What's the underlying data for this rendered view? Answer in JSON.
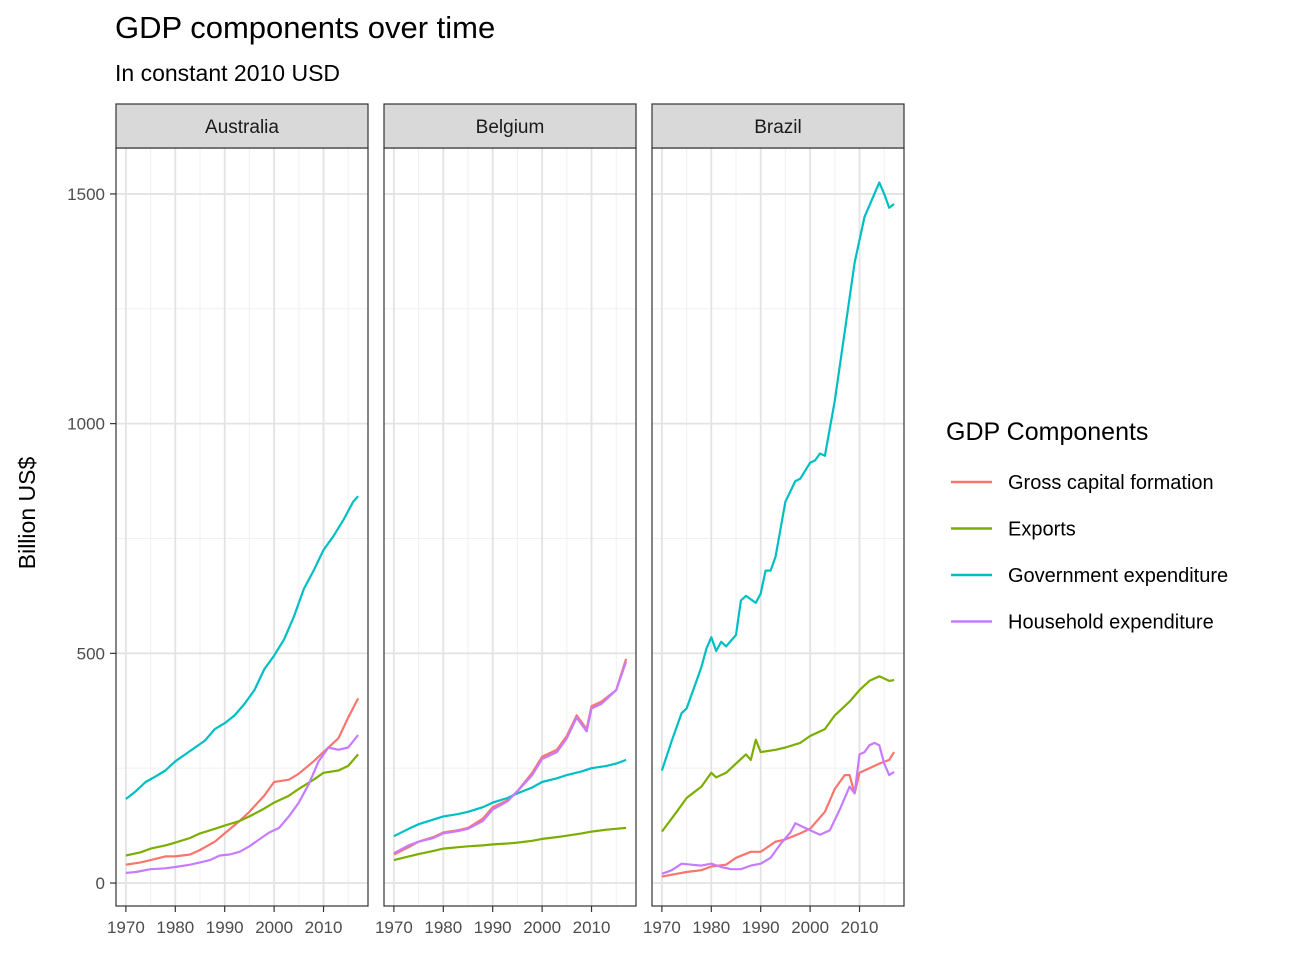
{
  "title": "GDP components over time",
  "subtitle": "In constant 2010 USD",
  "legend": {
    "title": "GDP Components",
    "placement": "right"
  },
  "chart_data": {
    "type": "line",
    "ylabel": "Billion US$",
    "xlabel": "",
    "ylim": [
      -50,
      1600
    ],
    "xlim": [
      1968,
      2019
    ],
    "y_ticks": [
      0,
      500,
      1000,
      1500
    ],
    "x_ticks": [
      1970,
      1980,
      1990,
      2000,
      2010
    ],
    "grid": true,
    "facets": [
      "Australia",
      "Belgium",
      "Brazil"
    ],
    "series_order": [
      "Gross capital formation",
      "Exports",
      "Government expenditure",
      "Household expenditure"
    ],
    "colors": {
      "Gross capital formation": "#F8766D",
      "Exports": "#7CAE00",
      "Government expenditure": "#00BFC4",
      "Household expenditure": "#C77CFF"
    },
    "panels": [
      {
        "name": "Australia",
        "series": [
          {
            "name": "Gross capital formation",
            "x": [
              1970,
              1973,
              1975,
              1978,
              1980,
              1983,
              1985,
              1988,
              1990,
              1993,
              1995,
              1998,
              2000,
              2003,
              2005,
              2008,
              2010,
              2013,
              2015,
              2017
            ],
            "values": [
              40,
              45,
              50,
              58,
              58,
              62,
              72,
              90,
              108,
              135,
              155,
              190,
              220,
              225,
              238,
              265,
              285,
              315,
              360,
              402
            ]
          },
          {
            "name": "Exports",
            "x": [
              1970,
              1973,
              1975,
              1978,
              1980,
              1983,
              1985,
              1988,
              1990,
              1993,
              1995,
              1998,
              2000,
              2003,
              2005,
              2008,
              2010,
              2013,
              2015,
              2017
            ],
            "values": [
              60,
              67,
              75,
              82,
              88,
              98,
              108,
              118,
              125,
              135,
              145,
              162,
              175,
              190,
              205,
              225,
              240,
              245,
              255,
              280
            ]
          },
          {
            "name": "Government expenditure",
            "x": [
              1970,
              1972,
              1974,
              1976,
              1978,
              1980,
              1982,
              1984,
              1986,
              1988,
              1990,
              1992,
              1994,
              1996,
              1998,
              2000,
              2002,
              2004,
              2006,
              2008,
              2010,
              2012,
              2014,
              2016,
              2017
            ],
            "values": [
              183,
              200,
              220,
              232,
              245,
              265,
              280,
              295,
              310,
              335,
              348,
              365,
              390,
              420,
              465,
              495,
              530,
              580,
              640,
              680,
              725,
              755,
              790,
              830,
              842
            ]
          },
          {
            "name": "Household expenditure",
            "x": [
              1970,
              1972,
              1975,
              1978,
              1980,
              1983,
              1985,
              1987,
              1989,
              1991,
              1993,
              1995,
              1997,
              1999,
              2001,
              2003,
              2005,
              2007,
              2009,
              2011,
              2013,
              2015,
              2017
            ],
            "values": [
              22,
              24,
              30,
              32,
              35,
              40,
              45,
              50,
              60,
              62,
              68,
              80,
              95,
              110,
              120,
              145,
              175,
              215,
              265,
              295,
              290,
              295,
              322
            ]
          }
        ]
      },
      {
        "name": "Belgium",
        "series": [
          {
            "name": "Gross capital formation",
            "x": [
              1970,
              1973,
              1975,
              1978,
              1980,
              1983,
              1985,
              1988,
              1990,
              1993,
              1995,
              1998,
              2000,
              2003,
              2005,
              2007,
              2009,
              2010,
              2012,
              2015,
              2017
            ],
            "values": [
              62,
              78,
              90,
              100,
              110,
              115,
              120,
              140,
              165,
              180,
              200,
              240,
              275,
              290,
              320,
              365,
              335,
              385,
              395,
              420,
              488
            ]
          },
          {
            "name": "Exports",
            "x": [
              1970,
              1973,
              1975,
              1978,
              1980,
              1983,
              1985,
              1988,
              1990,
              1993,
              1995,
              1998,
              2000,
              2003,
              2005,
              2008,
              2010,
              2013,
              2015,
              2017
            ],
            "values": [
              50,
              58,
              63,
              70,
              75,
              78,
              80,
              82,
              84,
              86,
              88,
              92,
              96,
              100,
              103,
              108,
              112,
              116,
              118,
              120
            ]
          },
          {
            "name": "Government expenditure",
            "x": [
              1970,
              1973,
              1975,
              1978,
              1980,
              1983,
              1985,
              1988,
              1990,
              1993,
              1995,
              1998,
              2000,
              2003,
              2005,
              2008,
              2010,
              2013,
              2015,
              2017
            ],
            "values": [
              102,
              118,
              128,
              138,
              145,
              150,
              155,
              165,
              175,
              185,
              195,
              208,
              220,
              228,
              235,
              243,
              250,
              255,
              260,
              268
            ]
          },
          {
            "name": "Household expenditure",
            "x": [
              1970,
              1973,
              1975,
              1978,
              1980,
              1983,
              1985,
              1988,
              1990,
              1993,
              1995,
              1998,
              2000,
              2003,
              2005,
              2007,
              2009,
              2010,
              2012,
              2015,
              2017
            ],
            "values": [
              65,
              82,
              90,
              98,
              108,
              113,
              118,
              135,
              160,
              178,
              200,
              235,
              270,
              285,
              315,
              360,
              330,
              380,
              390,
              420,
              482
            ]
          }
        ]
      },
      {
        "name": "Brazil",
        "series": [
          {
            "name": "Gross capital formation",
            "x": [
              1970,
              1973,
              1975,
              1978,
              1980,
              1983,
              1985,
              1988,
              1990,
              1993,
              1995,
              1998,
              2000,
              2003,
              2005,
              2007,
              2008,
              2009,
              2010,
              2012,
              2014,
              2016,
              2017
            ],
            "values": [
              14,
              20,
              24,
              28,
              36,
              40,
              55,
              68,
              68,
              90,
              95,
              108,
              118,
              155,
              205,
              235,
              235,
              195,
              240,
              250,
              260,
              268,
              285
            ]
          },
          {
            "name": "Exports",
            "x": [
              1970,
              1973,
              1975,
              1978,
              1980,
              1981,
              1983,
              1985,
              1987,
              1988,
              1989,
              1990,
              1993,
              1995,
              1998,
              2000,
              2003,
              2005,
              2008,
              2010,
              2012,
              2014,
              2016,
              2017
            ],
            "values": [
              112,
              155,
              185,
              210,
              240,
              230,
              240,
              260,
              280,
              268,
              312,
              285,
              290,
              295,
              305,
              320,
              335,
              365,
              395,
              420,
              440,
              450,
              440,
              442
            ]
          },
          {
            "name": "Government expenditure",
            "x": [
              1970,
              1972,
              1974,
              1975,
              1977,
              1978,
              1979,
              1980,
              1981,
              1982,
              1983,
              1985,
              1986,
              1987,
              1989,
              1990,
              1991,
              1992,
              1993,
              1995,
              1997,
              1998,
              2000,
              2001,
              2002,
              2003,
              2005,
              2007,
              2009,
              2011,
              2013,
              2014,
              2015,
              2016,
              2017
            ],
            "values": [
              245,
              310,
              370,
              380,
              440,
              470,
              510,
              535,
              505,
              525,
              515,
              540,
              615,
              625,
              610,
              630,
              680,
              680,
              710,
              830,
              875,
              880,
              915,
              920,
              935,
              930,
              1050,
              1200,
              1350,
              1450,
              1500,
              1525,
              1500,
              1470,
              1478
            ]
          },
          {
            "name": "Household expenditure",
            "x": [
              1970,
              1972,
              1974,
              1976,
              1978,
              1980,
              1982,
              1984,
              1986,
              1988,
              1990,
              1992,
              1994,
              1996,
              1997,
              1998,
              2000,
              2002,
              2004,
              2006,
              2008,
              2009,
              2010,
              2011,
              2012,
              2013,
              2014,
              2015,
              2016,
              2017
            ],
            "values": [
              20,
              28,
              42,
              40,
              38,
              42,
              35,
              30,
              30,
              38,
              42,
              55,
              85,
              110,
              130,
              125,
              115,
              105,
              115,
              160,
              210,
              195,
              280,
              285,
              300,
              305,
              300,
              260,
              235,
              242
            ]
          }
        ]
      }
    ]
  }
}
